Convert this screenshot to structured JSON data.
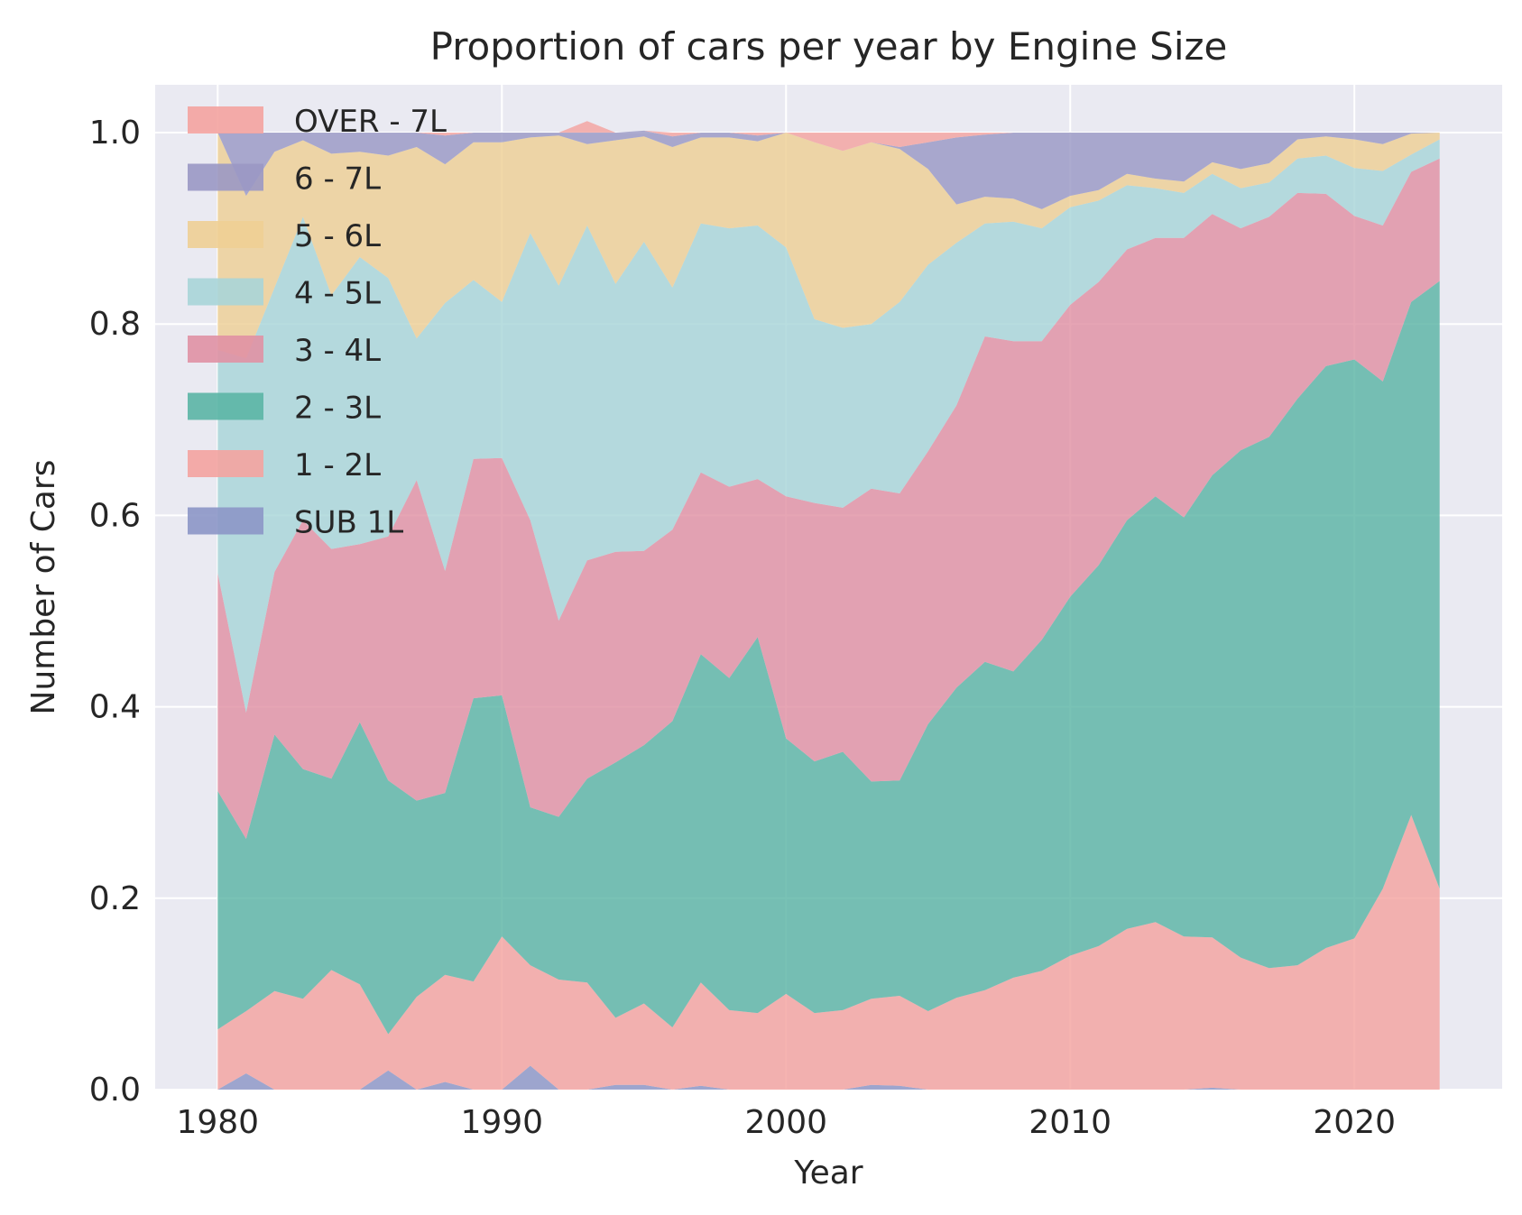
{
  "chart_data": {
    "type": "area",
    "stacked": true,
    "title": "Proportion of cars per year by Engine Size",
    "xlabel": "Year",
    "ylabel": "Number of Cars",
    "xlim": [
      1977.8,
      2025.2
    ],
    "ylim": [
      0.0,
      1.05
    ],
    "xticks": [
      1980,
      1990,
      2000,
      2010,
      2020
    ],
    "yticks": [
      0.0,
      0.2,
      0.4,
      0.6,
      0.8,
      1.0
    ],
    "ytick_labels": [
      "0.0",
      "0.2",
      "0.4",
      "0.6",
      "0.8",
      "1.0"
    ],
    "grid": true,
    "legend_position": "upper-left",
    "x": [
      1980,
      1981,
      1982,
      1983,
      1984,
      1985,
      1986,
      1987,
      1988,
      1989,
      1990,
      1991,
      1992,
      1993,
      1994,
      1995,
      1996,
      1997,
      1998,
      1999,
      2000,
      2001,
      2002,
      2003,
      2004,
      2005,
      2006,
      2007,
      2008,
      2009,
      2010,
      2011,
      2012,
      2013,
      2014,
      2015,
      2016,
      2017,
      2018,
      2019,
      2020,
      2021,
      2022,
      2023
    ],
    "series": [
      {
        "name": "SUB 1L",
        "color": "#8c96c6",
        "values": [
          0.0,
          0.017,
          0.0,
          0.0,
          0.0,
          0.0,
          0.02,
          0.0,
          0.008,
          0.0,
          0.0,
          0.025,
          0.0,
          0.0,
          0.005,
          0.005,
          0.0,
          0.004,
          0.0,
          0.0,
          0.0,
          0.0,
          0.0,
          0.005,
          0.004,
          0.0,
          0.0,
          0.0,
          0.0,
          0.0,
          0.0,
          0.0,
          0.0,
          0.0,
          0.0,
          0.002,
          0.0,
          0.0,
          0.0,
          0.0,
          0.0,
          0.0,
          0.0,
          0.0
        ]
      },
      {
        "name": "1 - 2L",
        "color": "#f4a3a0",
        "values": [
          0.063,
          0.065,
          0.103,
          0.095,
          0.125,
          0.11,
          0.038,
          0.097,
          0.112,
          0.113,
          0.16,
          0.105,
          0.115,
          0.112,
          0.07,
          0.085,
          0.065,
          0.108,
          0.083,
          0.08,
          0.1,
          0.08,
          0.083,
          0.09,
          0.094,
          0.082,
          0.096,
          0.104,
          0.117,
          0.124,
          0.14,
          0.15,
          0.168,
          0.175,
          0.16,
          0.157,
          0.138,
          0.127,
          0.13,
          0.148,
          0.158,
          0.21,
          0.287,
          0.21
        ]
      },
      {
        "name": "2 - 3L",
        "color": "#5bb5a5",
        "values": [
          0.249,
          0.18,
          0.268,
          0.24,
          0.2,
          0.274,
          0.265,
          0.205,
          0.19,
          0.296,
          0.252,
          0.165,
          0.17,
          0.213,
          0.267,
          0.27,
          0.32,
          0.343,
          0.347,
          0.393,
          0.267,
          0.263,
          0.27,
          0.227,
          0.225,
          0.3,
          0.324,
          0.343,
          0.32,
          0.346,
          0.375,
          0.398,
          0.427,
          0.445,
          0.438,
          0.483,
          0.53,
          0.555,
          0.592,
          0.608,
          0.605,
          0.53,
          0.536,
          0.635
        ]
      },
      {
        "name": "3 - 4L",
        "color": "#e091a4",
        "values": [
          0.228,
          0.132,
          0.17,
          0.26,
          0.24,
          0.186,
          0.255,
          0.335,
          0.232,
          0.25,
          0.248,
          0.3,
          0.205,
          0.228,
          0.22,
          0.203,
          0.2,
          0.19,
          0.2,
          0.165,
          0.253,
          0.27,
          0.255,
          0.306,
          0.3,
          0.285,
          0.295,
          0.34,
          0.345,
          0.312,
          0.305,
          0.296,
          0.283,
          0.27,
          0.292,
          0.273,
          0.232,
          0.23,
          0.215,
          0.18,
          0.15,
          0.163,
          0.136,
          0.128
        ]
      },
      {
        "name": "4 - 5L",
        "color": "#a8d5d8",
        "values": [
          0.233,
          0.37,
          0.297,
          0.317,
          0.265,
          0.3,
          0.27,
          0.148,
          0.28,
          0.187,
          0.163,
          0.3,
          0.35,
          0.35,
          0.28,
          0.323,
          0.253,
          0.26,
          0.27,
          0.265,
          0.26,
          0.192,
          0.188,
          0.172,
          0.2,
          0.195,
          0.17,
          0.118,
          0.125,
          0.118,
          0.102,
          0.085,
          0.067,
          0.052,
          0.047,
          0.042,
          0.042,
          0.036,
          0.036,
          0.04,
          0.05,
          0.057,
          0.018,
          0.02
        ]
      },
      {
        "name": "5 - 6L",
        "color": "#eecf95",
        "values": [
          0.227,
          0.17,
          0.142,
          0.08,
          0.148,
          0.11,
          0.128,
          0.2,
          0.145,
          0.144,
          0.167,
          0.1,
          0.157,
          0.085,
          0.15,
          0.11,
          0.147,
          0.09,
          0.095,
          0.088,
          0.12,
          0.185,
          0.185,
          0.19,
          0.16,
          0.1,
          0.04,
          0.028,
          0.024,
          0.02,
          0.012,
          0.011,
          0.012,
          0.01,
          0.012,
          0.012,
          0.02,
          0.02,
          0.02,
          0.02,
          0.03,
          0.028,
          0.022,
          0.007
        ]
      },
      {
        "name": "6 - 7L",
        "color": "#9a98c4",
        "values": [
          0.0,
          0.066,
          0.02,
          0.008,
          0.022,
          0.02,
          0.024,
          0.015,
          0.03,
          0.01,
          0.01,
          0.005,
          0.003,
          0.012,
          0.008,
          0.006,
          0.011,
          0.005,
          0.005,
          0.006,
          0.0,
          0.0,
          0.0,
          0.0,
          0.002,
          0.028,
          0.07,
          0.065,
          0.069,
          0.08,
          0.066,
          0.06,
          0.043,
          0.048,
          0.051,
          0.031,
          0.038,
          0.032,
          0.007,
          0.004,
          0.007,
          0.012,
          0.001,
          0.0
        ]
      },
      {
        "name": "OVER - 7L",
        "color": "#f4a3a0",
        "values": [
          0.0,
          0.0,
          0.0,
          0.0,
          0.0,
          0.0,
          0.0,
          0.0,
          0.003,
          0.0,
          0.0,
          0.0,
          0.0,
          0.012,
          0.0,
          0.0,
          0.004,
          0.0,
          0.0,
          0.003,
          0.0,
          0.01,
          0.019,
          0.01,
          0.015,
          0.01,
          0.005,
          0.002,
          0.0,
          0.0,
          0.0,
          0.0,
          0.0,
          0.0,
          0.0,
          0.0,
          0.0,
          0.0,
          0.0,
          0.0,
          0.0,
          0.0,
          0.0,
          0.0
        ]
      }
    ],
    "legend_order": [
      "OVER - 7L",
      "6 - 7L",
      "5 - 6L",
      "4 - 5L",
      "3 - 4L",
      "2 - 3L",
      "1 - 2L",
      "SUB 1L"
    ]
  }
}
